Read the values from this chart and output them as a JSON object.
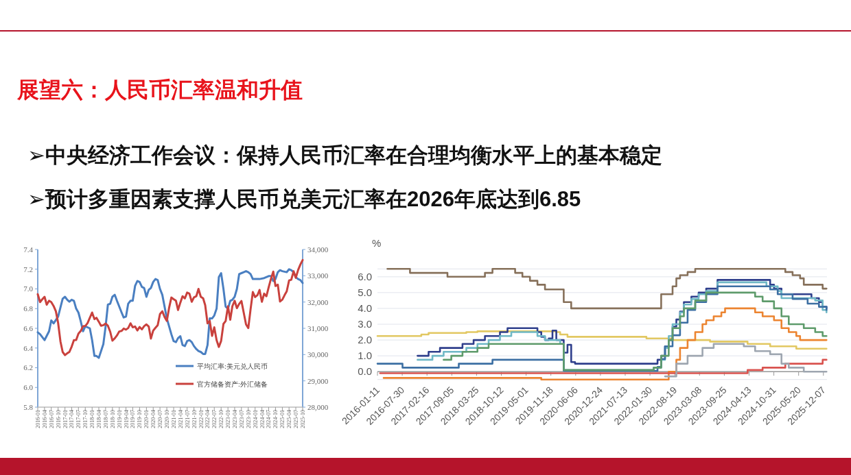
{
  "chart_data": [
    {
      "type": "line",
      "title": "展望六：人民币汇率温和升值",
      "annotations": [
        "➢中央经济工作会议：保持人民币汇率在合理均衡水平上的基本稳定",
        "➢预计多重因素支撑人民币兑美元汇率在2026年底达到6.85"
      ],
      "xlim": [
        "2016-01",
        "2025-10"
      ],
      "xticks": [
        "2016-01",
        "2016-04",
        "2016-07",
        "2016-10",
        "2017-01",
        "2017-04",
        "2017-07",
        "2017-10",
        "2018-01",
        "2018-04",
        "2018-07",
        "2018-10",
        "2019-01",
        "2019-04",
        "2019-07",
        "2019-10",
        "2020-01",
        "2020-04",
        "2020-07",
        "2020-10",
        "2021-01",
        "2021-04",
        "2021-07",
        "2021-10",
        "2022-01",
        "2022-04",
        "2022-07",
        "2022-10",
        "2023-01",
        "2023-04",
        "2023-07",
        "2023-10",
        "2024-01",
        "2024-04",
        "2024-07",
        "2024-10",
        "2025-01",
        "2025-04",
        "2025-07",
        "2025-10"
      ],
      "ylim": [
        5.8,
        7.4
      ],
      "yticks": [
        5.8,
        {
          "value": 6,
          "label": "6.0"
        },
        6.2,
        6.4,
        6.6,
        6.8,
        {
          "value": 7,
          "label": "7.0"
        },
        7.2,
        7.4
      ],
      "y2lim": [
        28000,
        34000
      ],
      "y2ticks": [
        {
          "value": 28000,
          "label": "28,000"
        },
        {
          "value": 29000,
          "label": "29,000"
        },
        {
          "value": 30000,
          "label": "30,000"
        },
        {
          "value": 31000,
          "label": "31,000"
        },
        {
          "value": 32000,
          "label": "32,000"
        },
        {
          "value": 33000,
          "label": "33,000"
        },
        {
          "value": 34000,
          "label": "34,000"
        }
      ],
      "legend": "bottom right",
      "series": [
        {
          "name": "平均汇率:美元兑人民币",
          "color": "#4a7fc1",
          "x": [
            "2016-01",
            "2016-02",
            "2016-04",
            "2016-06",
            "2016-07",
            "2016-08",
            "2016-10",
            "2016-12",
            "2017-01",
            "2017-02",
            "2017-03",
            "2017-04",
            "2017-05",
            "2017-06",
            "2017-07",
            "2017-08",
            "2017-09",
            "2017-10",
            "2017-12",
            "2018-01",
            "2018-02",
            "2018-03",
            "2018-04",
            "2018-06",
            "2018-07",
            "2018-08",
            "2018-09",
            "2018-10",
            "2018-11",
            "2018-12",
            "2019-02",
            "2019-03",
            "2019-04",
            "2019-05",
            "2019-06",
            "2019-07",
            "2019-08",
            "2019-09",
            "2019-10",
            "2019-11",
            "2019-12",
            "2020-01",
            "2020-02",
            "2020-03",
            "2020-04",
            "2020-05",
            "2020-06",
            "2020-07",
            "2020-08",
            "2020-09",
            "2020-10",
            "2020-11",
            "2020-12",
            "2021-01",
            "2021-02",
            "2021-03",
            "2021-04",
            "2021-05",
            "2021-06",
            "2021-07",
            "2021-08",
            "2021-09",
            "2021-10",
            "2021-11",
            "2021-12",
            "2022-01",
            "2022-02",
            "2022-03",
            "2022-04",
            "2022-05",
            "2022-06",
            "2022-07",
            "2022-08",
            "2022-09",
            "2022-10",
            "2022-11",
            "2022-12",
            "2023-01",
            "2023-02",
            "2023-03",
            "2023-04",
            "2023-05",
            "2023-06",
            "2023-07",
            "2023-08",
            "2023-09",
            "2023-10",
            "2023-11",
            "2023-12",
            "2024-01",
            "2024-03",
            "2024-05",
            "2024-07",
            "2024-08",
            "2024-09",
            "2024-10",
            "2024-11",
            "2024-12",
            "2025-01",
            "2025-03",
            "2025-04",
            "2025-05",
            "2025-06",
            "2025-07",
            "2025-08",
            "2025-09",
            "2025-10"
          ],
          "values": [
            6.56,
            6.54,
            6.48,
            6.57,
            6.68,
            6.65,
            6.72,
            6.9,
            6.92,
            6.89,
            6.87,
            6.89,
            6.88,
            6.8,
            6.76,
            6.67,
            6.57,
            6.62,
            6.6,
            6.48,
            6.32,
            6.32,
            6.3,
            6.44,
            6.62,
            6.84,
            6.85,
            6.92,
            6.94,
            6.88,
            6.76,
            6.71,
            6.72,
            6.85,
            6.88,
            6.88,
            7.03,
            7.08,
            7.07,
            7.02,
            7.01,
            6.92,
            6.99,
            7.01,
            7.07,
            7.1,
            7.09,
            7.0,
            6.94,
            6.82,
            6.7,
            6.62,
            6.54,
            6.47,
            6.46,
            6.5,
            6.52,
            6.43,
            6.42,
            6.47,
            6.48,
            6.46,
            6.42,
            6.39,
            6.37,
            6.36,
            6.34,
            6.34,
            6.43,
            6.7,
            6.7,
            6.73,
            6.8,
            7.12,
            7.16,
            7.0,
            6.82,
            6.8,
            6.88,
            6.89,
            6.92,
            7.0,
            7.15,
            7.16,
            7.17,
            7.18,
            7.17,
            7.15,
            7.1,
            7.1,
            7.1,
            7.11,
            7.13,
            7.13,
            7.08,
            7.1,
            7.17,
            7.19,
            7.18,
            7.17,
            7.2,
            7.19,
            7.17,
            7.12,
            7.1,
            7.09,
            7.06
          ]
        },
        {
          "name": "官方储备资产:外汇储备",
          "color": "#c9413d",
          "axis": "y2",
          "x": [
            "2016-01",
            "2016-02",
            "2016-03",
            "2016-04",
            "2016-05",
            "2016-06",
            "2016-07",
            "2016-08",
            "2016-09",
            "2016-10",
            "2016-11",
            "2016-12",
            "2017-01",
            "2017-02",
            "2017-03",
            "2017-04",
            "2017-05",
            "2017-06",
            "2017-07",
            "2017-08",
            "2017-09",
            "2017-10",
            "2017-11",
            "2017-12",
            "2018-01",
            "2018-02",
            "2018-03",
            "2018-04",
            "2018-05",
            "2018-06",
            "2018-07",
            "2018-08",
            "2018-09",
            "2018-10",
            "2018-11",
            "2018-12",
            "2019-01",
            "2019-02",
            "2019-03",
            "2019-04",
            "2019-05",
            "2019-06",
            "2019-07",
            "2019-08",
            "2019-09",
            "2019-10",
            "2019-11",
            "2019-12",
            "2020-01",
            "2020-02",
            "2020-03",
            "2020-04",
            "2020-05",
            "2020-06",
            "2020-07",
            "2020-08",
            "2020-09",
            "2020-10",
            "2020-11",
            "2020-12",
            "2021-01",
            "2021-02",
            "2021-03",
            "2021-04",
            "2021-05",
            "2021-06",
            "2021-07",
            "2021-08",
            "2021-09",
            "2021-10",
            "2021-11",
            "2021-12",
            "2022-01",
            "2022-02",
            "2022-03",
            "2022-04",
            "2022-05",
            "2022-06",
            "2022-07",
            "2022-08",
            "2022-09",
            "2022-10",
            "2022-11",
            "2022-12",
            "2023-01",
            "2023-02",
            "2023-03",
            "2023-04",
            "2023-05",
            "2023-06",
            "2023-07",
            "2023-08",
            "2023-09",
            "2023-10",
            "2023-11",
            "2023-12",
            "2024-01",
            "2024-02",
            "2024-03",
            "2024-04",
            "2024-05",
            "2024-06",
            "2024-07",
            "2024-08",
            "2024-09",
            "2024-10",
            "2024-11",
            "2024-12",
            "2025-01",
            "2025-02",
            "2025-03",
            "2025-04",
            "2025-05",
            "2025-06",
            "2025-07",
            "2025-08",
            "2025-09",
            "2025-10"
          ],
          "values": [
            32300,
            32000,
            32100,
            32200,
            31900,
            32050,
            32000,
            31850,
            31650,
            31200,
            30500,
            30100,
            29980,
            30050,
            30100,
            30300,
            30550,
            30560,
            30800,
            30900,
            31080,
            31090,
            31200,
            31400,
            31600,
            31350,
            31400,
            31250,
            31100,
            31120,
            31180,
            31100,
            30870,
            30530,
            30620,
            30730,
            30880,
            30900,
            30990,
            30950,
            31010,
            31190,
            31040,
            31070,
            30920,
            31050,
            30960,
            31080,
            31150,
            31070,
            30610,
            30910,
            31020,
            31120,
            31540,
            31650,
            31430,
            31280,
            31780,
            32170,
            32110,
            32050,
            31700,
            31980,
            32220,
            32140,
            32360,
            32320,
            32010,
            32180,
            32220,
            32500,
            32200,
            32140,
            31880,
            31190,
            31280,
            30710,
            31040,
            30550,
            30290,
            30520,
            31170,
            31280,
            31840,
            31330,
            31840,
            32050,
            31770,
            31930,
            32040,
            31600,
            31150,
            31010,
            31720,
            32380,
            32190,
            32260,
            32460,
            32010,
            32320,
            32220,
            32560,
            32880,
            33160,
            32610,
            32660,
            32020,
            32090,
            32270,
            32410,
            32820,
            32850,
            33170,
            32920,
            33220,
            33430,
            33600
          ]
        }
      ]
    },
    {
      "type": "step",
      "ylabel": "%",
      "grid": "y",
      "xlim": [
        "2016-01-11",
        "2026-01-05"
      ],
      "xticks": [
        "2016-01-11",
        "2016-07-30",
        "2017-02-16",
        "2017-09-05",
        "2018-03-25",
        "2018-10-12",
        "2019-05-01",
        "2019-11-18",
        "2020-06-06",
        "2020-12-24",
        "2021-07-13",
        "2022-01-30",
        "2022-08-19",
        "2023-03-08",
        "2023-09-25",
        "2024-04-13",
        "2024-10-31",
        "2025-05-20",
        "2025-12-07"
      ],
      "ylim": [
        -0.6,
        6.6
      ],
      "yticks": [
        {
          "value": -0.5,
          "label": null
        },
        {
          "value": 0,
          "label": "0.0"
        },
        {
          "value": 1,
          "label": "1.0"
        },
        {
          "value": 2,
          "label": "2.0"
        },
        {
          "value": 3,
          "label": "3.0"
        },
        {
          "value": 4,
          "label": "4.0"
        },
        {
          "value": 5,
          "label": "5.0"
        },
        {
          "value": 6,
          "label": "6.0"
        },
        {
          "value": 6.5,
          "label": null
        }
      ],
      "series": [
        {
          "color": "#86705a",
          "x": [
            "2016-04",
            "2016-10",
            "2017-08",
            "2018-06",
            "2018-08",
            "2019-02",
            "2019-04",
            "2019-06",
            "2019-08",
            "2019-10",
            "2020-03",
            "2020-05",
            "2022-05",
            "2022-08",
            "2022-09",
            "2022-10",
            "2022-12",
            "2023-02",
            "2025-02",
            "2025-04",
            "2025-06",
            "2025-07",
            "2025-12",
            "2026-01"
          ],
          "values": [
            6.5,
            6.25,
            6.0,
            6.25,
            6.5,
            6.25,
            6.0,
            5.75,
            5.5,
            5.2,
            4.4,
            4.0,
            4.9,
            5.4,
            5.9,
            6.1,
            6.3,
            6.5,
            6.3,
            6.1,
            5.9,
            5.5,
            5.25,
            5.25
          ]
        },
        {
          "color": "#e2c862",
          "x": [
            "2016-01-11",
            "2017-01",
            "2017-03",
            "2018-01",
            "2018-04",
            "2020-01",
            "2020-02",
            "2020-04",
            "2022-01",
            "2022-08",
            "2023-06",
            "2024-04",
            "2024-10",
            "2025-05",
            "2026-01"
          ],
          "values": [
            2.25,
            2.35,
            2.45,
            2.5,
            2.55,
            2.5,
            2.35,
            2.2,
            2.1,
            2.0,
            1.9,
            1.75,
            1.6,
            1.45,
            1.45
          ]
        },
        {
          "color": "#2f3f8c",
          "x": [
            "2016-12",
            "2017-03",
            "2017-06",
            "2017-12",
            "2018-03",
            "2018-06",
            "2018-10",
            "2018-12",
            "2019-08",
            "2019-09",
            "2019-10",
            "2019-11",
            "2019-12",
            "2020-01",
            "2020-03",
            "2020-04",
            "2020-05",
            "2020-06",
            "2022-02",
            "2022-04",
            "2022-05",
            "2022-06",
            "2022-07",
            "2022-08",
            "2022-09",
            "2022-10",
            "2022-11",
            "2023-01",
            "2023-03",
            "2023-05",
            "2023-08",
            "2024-10",
            "2024-11",
            "2025-01",
            "2025-09",
            "2025-11",
            "2025-12",
            "2026-01"
          ],
          "values": [
            1.0,
            1.25,
            1.5,
            1.75,
            2.0,
            2.25,
            2.5,
            2.75,
            2.5,
            2.2,
            2.0,
            2.1,
            2.6,
            2.0,
            1.2,
            1.7,
            0.6,
            0.5,
            0.5,
            0.75,
            1.0,
            1.6,
            2.0,
            2.85,
            3.3,
            3.8,
            4.4,
            4.75,
            5.0,
            5.25,
            5.8,
            5.5,
            5.25,
            4.9,
            4.65,
            4.4,
            4.1,
            4.0
          ]
        },
        {
          "color": "#6fb8c6",
          "x": [
            "2016-12",
            "2017-04",
            "2017-07",
            "2018-01",
            "2018-04",
            "2018-07",
            "2018-10",
            "2019-01",
            "2019-08",
            "2019-10",
            "2020-02",
            "2020-03",
            "2022-03",
            "2022-05",
            "2022-06",
            "2022-07",
            "2022-08",
            "2022-10",
            "2022-11",
            "2023-01",
            "2023-03",
            "2023-05",
            "2023-08",
            "2024-09",
            "2024-12",
            "2025-01",
            "2025-10",
            "2025-12",
            "2026-01"
          ],
          "values": [
            0.75,
            1.0,
            1.25,
            1.5,
            1.75,
            2.0,
            2.25,
            2.5,
            2.25,
            2.0,
            1.75,
            0.1,
            0.25,
            0.75,
            1.5,
            2.25,
            3.0,
            3.75,
            4.25,
            4.6,
            4.9,
            5.1,
            5.65,
            5.4,
            5.1,
            4.65,
            4.5,
            3.9,
            3.75
          ]
        },
        {
          "color": "#3c6fa3",
          "x": [
            "2016-01-11",
            "2016-08",
            "2017-11",
            "2018-08",
            "2020-03",
            "2022-02",
            "2022-04",
            "2022-05",
            "2022-06",
            "2022-08",
            "2022-10",
            "2022-12",
            "2023-02",
            "2023-05",
            "2023-08",
            "2024-10",
            "2024-12",
            "2025-04",
            "2025-08",
            "2025-11",
            "2026-01"
          ],
          "values": [
            0.5,
            0.25,
            0.5,
            0.75,
            0.05,
            0.05,
            0.3,
            0.8,
            1.6,
            2.3,
            3.1,
            3.9,
            4.4,
            4.9,
            5.4,
            5.2,
            4.9,
            4.6,
            4.3,
            4.1,
            3.9
          ]
        },
        {
          "color": "#5e9b6b",
          "x": [
            "2017-07",
            "2017-09",
            "2017-12",
            "2018-04",
            "2018-07",
            "2020-03",
            "2022-03",
            "2022-05",
            "2022-07",
            "2022-08",
            "2022-10",
            "2022-11",
            "2023-02",
            "2023-05",
            "2024-06",
            "2024-08",
            "2024-11",
            "2025-01",
            "2025-03",
            "2025-07",
            "2025-10",
            "2025-12",
            "2026-01"
          ],
          "values": [
            0.75,
            1.0,
            1.25,
            1.5,
            1.75,
            0.1,
            0.25,
            1.0,
            2.0,
            2.75,
            3.5,
            4.0,
            4.5,
            5.0,
            4.75,
            4.45,
            4.0,
            3.5,
            3.0,
            2.75,
            2.5,
            2.25,
            2.25
          ]
        },
        {
          "color": "#ec8430",
          "x": [
            "2016-03",
            "2019-09",
            "2022-07",
            "2022-09",
            "2022-10",
            "2022-12",
            "2023-02",
            "2023-04",
            "2023-05",
            "2023-07",
            "2023-09",
            "2023-10",
            "2024-06",
            "2024-08",
            "2024-11",
            "2025-01",
            "2025-03",
            "2025-05",
            "2025-06",
            "2026-01"
          ],
          "values": [
            -0.4,
            -0.5,
            0.0,
            0.75,
            1.5,
            2.0,
            2.5,
            3.0,
            3.25,
            3.5,
            3.75,
            4.0,
            3.75,
            3.5,
            3.25,
            2.75,
            2.5,
            2.25,
            2.0,
            2.0
          ]
        },
        {
          "color": "#d9534f",
          "x": [
            "2016-02",
            "2024-04",
            "2024-08",
            "2025-02",
            "2025-12",
            "2026-01"
          ],
          "values": [
            -0.1,
            0.1,
            0.25,
            0.5,
            0.75,
            0.75
          ]
        },
        {
          "color": "#9ea6b0",
          "x": [
            "2022-06",
            "2022-09",
            "2022-12",
            "2023-04",
            "2023-07",
            "2024-03",
            "2024-06",
            "2024-10",
            "2025-01",
            "2025-03",
            "2025-07",
            "2026-01"
          ],
          "values": [
            -0.3,
            0.5,
            1.0,
            1.5,
            1.75,
            1.6,
            1.3,
            1.1,
            0.5,
            0.25,
            0.0,
            0.0
          ]
        }
      ]
    }
  ]
}
